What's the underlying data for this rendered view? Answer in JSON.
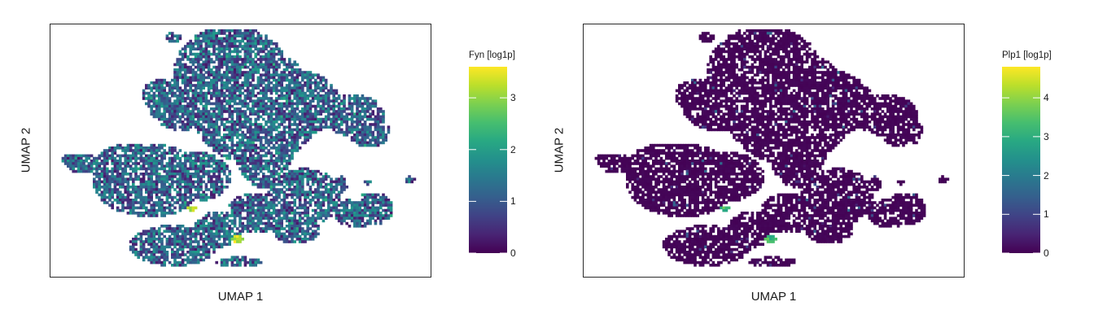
{
  "chart_data": [
    {
      "type": "heatmap",
      "subtype": "umap-hexbin-embedding",
      "xlabel": "UMAP 1",
      "ylabel": "UMAP 2",
      "grid": false,
      "colormap": "viridis",
      "colorbar": {
        "title": "Fyn [log1p]",
        "range": [
          0,
          3.6
        ],
        "ticks": [
          0,
          1,
          2,
          3
        ],
        "tick_labels": [
          "0",
          "1",
          "2",
          "3"
        ]
      },
      "expression_summary": {
        "typical_level": 1.1,
        "max_level": 3.6,
        "high_cluster_level": 3.2
      }
    },
    {
      "type": "heatmap",
      "subtype": "umap-hexbin-embedding",
      "xlabel": "UMAP 1",
      "ylabel": "UMAP 2",
      "grid": false,
      "colormap": "viridis",
      "colorbar": {
        "title": "Plp1 [log1p]",
        "range": [
          0,
          4.8
        ],
        "ticks": [
          0,
          1,
          2,
          3,
          4
        ],
        "tick_labels": [
          "0",
          "1",
          "2",
          "3",
          "4"
        ]
      },
      "expression_summary": {
        "typical_level": 0.05,
        "max_level": 4.8,
        "high_cluster_level": 3.3
      }
    }
  ],
  "colors": {
    "viridis_low": "#440154",
    "viridis_mid": "#21918c",
    "viridis_high": "#fde725",
    "frame": "#2b2b2b"
  }
}
